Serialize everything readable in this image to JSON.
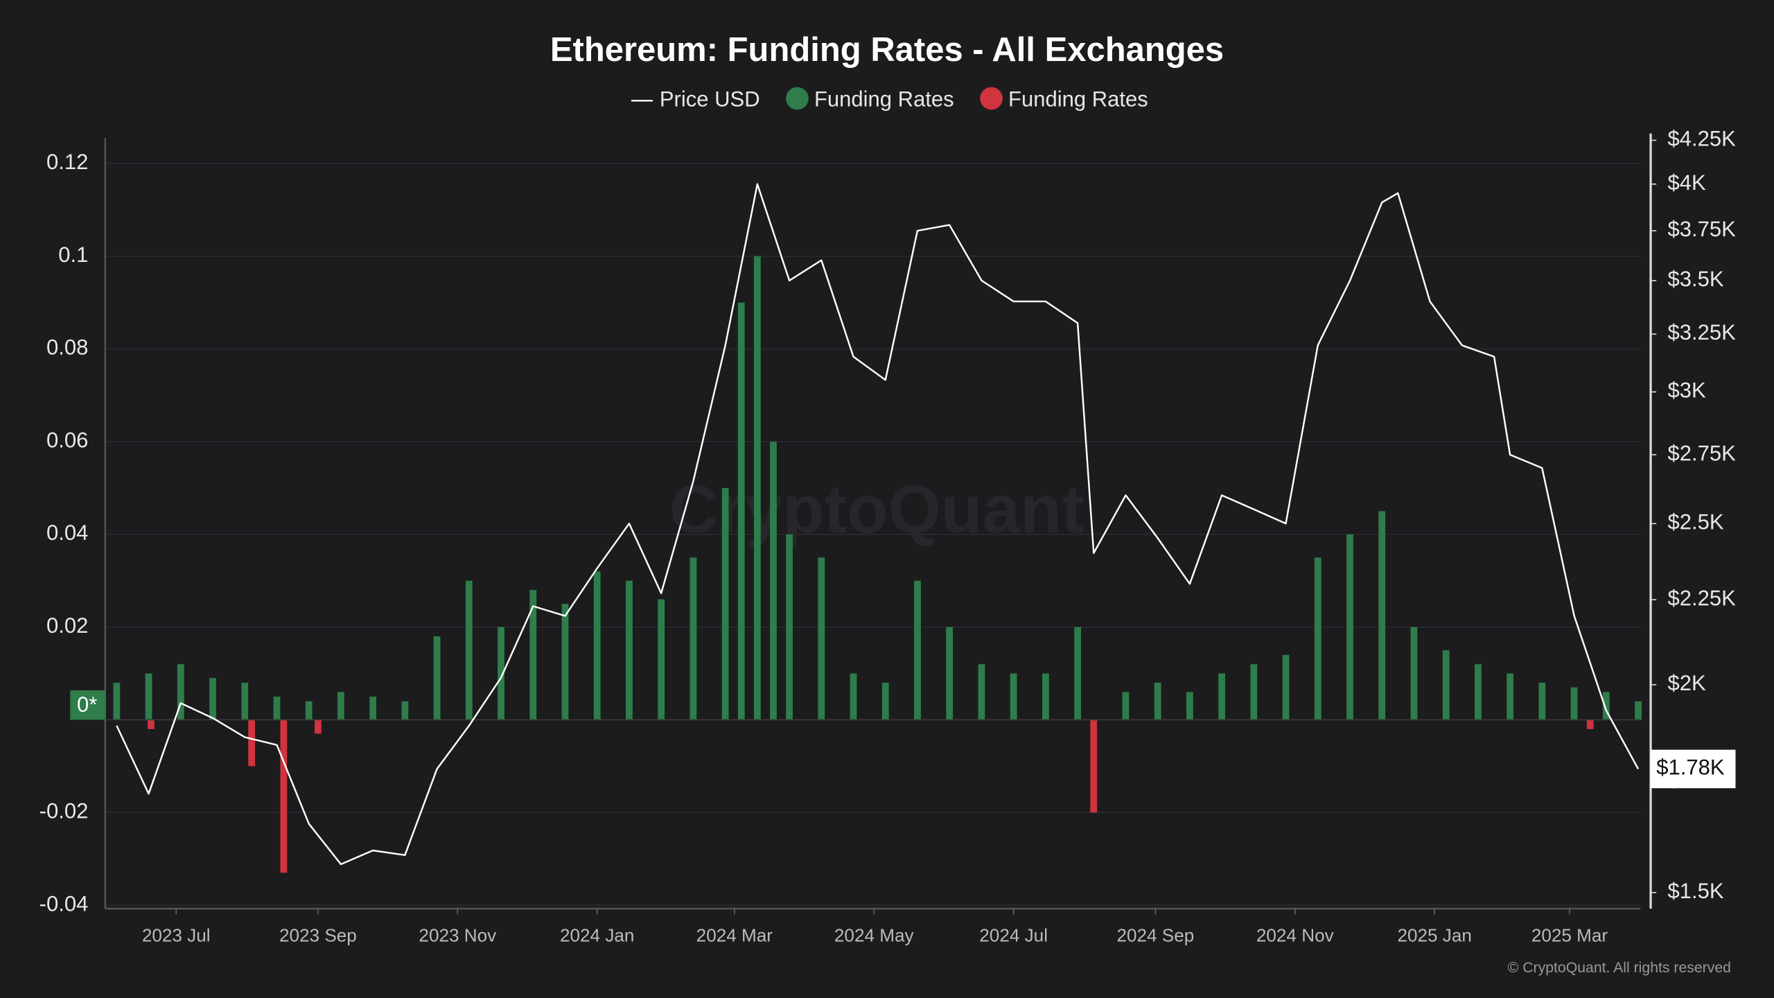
{
  "chart_data": {
    "type": "line-bar",
    "title": "Ethereum: Funding Rates - All Exchanges",
    "watermark": "CryptoQuant",
    "credit": "© CryptoQuant. All rights reserved",
    "zero_tag": "0*",
    "current_price": {
      "value": 1780,
      "label": "$1.78K"
    },
    "xlim": [
      "2023-05-31",
      "2025-04-01"
    ],
    "xticks": [
      {
        "value": "2023-07-01",
        "label": "2023 Jul"
      },
      {
        "value": "2023-09-01",
        "label": "2023 Sep"
      },
      {
        "value": "2023-11-01",
        "label": "2023 Nov"
      },
      {
        "value": "2024-01-01",
        "label": "2024 Jan"
      },
      {
        "value": "2024-03-01",
        "label": "2024 Mar"
      },
      {
        "value": "2024-05-01",
        "label": "2024 May"
      },
      {
        "value": "2024-07-01",
        "label": "2024 Jul"
      },
      {
        "value": "2024-09-01",
        "label": "2024 Sep"
      },
      {
        "value": "2024-11-01",
        "label": "2024 Nov"
      },
      {
        "value": "2025-01-01",
        "label": "2025 Jan"
      },
      {
        "value": "2025-03-01",
        "label": "2025 Mar"
      }
    ],
    "ylim": [
      -0.04,
      0.125
    ],
    "yticks": [
      -0.04,
      -0.02,
      0.02,
      0.04,
      0.06,
      0.08,
      0.1,
      0.12
    ],
    "y2lim": [
      1474,
      4250
    ],
    "y2scale": "log",
    "y2ticks": [
      {
        "value": 1500,
        "label": "$1.5K"
      },
      {
        "value": 1750,
        "label": "$1.75K"
      },
      {
        "value": 2000,
        "label": "$2K"
      },
      {
        "value": 2250,
        "label": "$2.25K"
      },
      {
        "value": 2500,
        "label": "$2.5K"
      },
      {
        "value": 2750,
        "label": "$2.75K"
      },
      {
        "value": 3000,
        "label": "$3K"
      },
      {
        "value": 3250,
        "label": "$3.25K"
      },
      {
        "value": 3500,
        "label": "$3.5K"
      },
      {
        "value": 3750,
        "label": "$3.75K"
      },
      {
        "value": 4000,
        "label": "$4K"
      },
      {
        "value": 4250,
        "label": "$4.25K"
      }
    ],
    "grid": true,
    "series": [
      {
        "name": "Price USD",
        "type": "line",
        "axis": "y2",
        "color": "#ffffff",
        "x": [
          "2023-06-05",
          "2023-06-19",
          "2023-07-03",
          "2023-07-17",
          "2023-07-31",
          "2023-08-14",
          "2023-08-28",
          "2023-09-11",
          "2023-09-25",
          "2023-10-09",
          "2023-10-23",
          "2023-11-06",
          "2023-11-20",
          "2023-12-04",
          "2023-12-18",
          "2024-01-01",
          "2024-01-15",
          "2024-01-29",
          "2024-02-12",
          "2024-02-26",
          "2024-03-11",
          "2024-03-25",
          "2024-04-08",
          "2024-04-22",
          "2024-05-06",
          "2024-05-20",
          "2024-06-03",
          "2024-06-17",
          "2024-07-01",
          "2024-07-15",
          "2024-07-29",
          "2024-08-05",
          "2024-08-19",
          "2024-09-02",
          "2024-09-16",
          "2024-09-30",
          "2024-10-14",
          "2024-10-28",
          "2024-11-11",
          "2024-11-25",
          "2024-12-09",
          "2024-12-16",
          "2024-12-30",
          "2025-01-13",
          "2025-01-27",
          "2025-02-03",
          "2025-02-17",
          "2025-03-03",
          "2025-03-17",
          "2025-03-31"
        ],
        "values": [
          1890,
          1720,
          1950,
          1910,
          1860,
          1840,
          1650,
          1560,
          1590,
          1580,
          1780,
          1890,
          2020,
          2230,
          2200,
          2350,
          2500,
          2270,
          2650,
          3200,
          4000,
          3500,
          3600,
          3150,
          3050,
          3750,
          3780,
          3500,
          3400,
          3400,
          3300,
          2400,
          2600,
          2450,
          2300,
          2600,
          2550,
          2500,
          3200,
          3500,
          3900,
          3950,
          3400,
          3200,
          3150,
          2750,
          2700,
          2200,
          1930,
          1780
        ]
      },
      {
        "name": "Funding Rates",
        "type": "bar",
        "color": "#2e7d4a",
        "x": [
          "2023-06-05",
          "2023-06-19",
          "2023-07-03",
          "2023-07-17",
          "2023-07-31",
          "2023-08-14",
          "2023-08-28",
          "2023-09-11",
          "2023-09-25",
          "2023-10-09",
          "2023-10-23",
          "2023-11-06",
          "2023-11-20",
          "2023-12-04",
          "2023-12-18",
          "2024-01-01",
          "2024-01-15",
          "2024-01-29",
          "2024-02-12",
          "2024-02-26",
          "2024-03-04",
          "2024-03-11",
          "2024-03-18",
          "2024-03-25",
          "2024-04-08",
          "2024-04-22",
          "2024-05-06",
          "2024-05-20",
          "2024-06-03",
          "2024-06-17",
          "2024-07-01",
          "2024-07-15",
          "2024-07-29",
          "2024-08-19",
          "2024-09-02",
          "2024-09-16",
          "2024-09-30",
          "2024-10-14",
          "2024-10-28",
          "2024-11-11",
          "2024-11-25",
          "2024-12-09",
          "2024-12-23",
          "2025-01-06",
          "2025-01-20",
          "2025-02-03",
          "2025-02-17",
          "2025-03-03",
          "2025-03-17",
          "2025-03-31"
        ],
        "values": [
          0.008,
          0.01,
          0.012,
          0.009,
          0.008,
          0.005,
          0.004,
          0.006,
          0.005,
          0.004,
          0.018,
          0.03,
          0.02,
          0.028,
          0.025,
          0.032,
          0.03,
          0.026,
          0.035,
          0.05,
          0.09,
          0.1,
          0.06,
          0.04,
          0.035,
          0.01,
          0.008,
          0.03,
          0.02,
          0.012,
          0.01,
          0.01,
          0.02,
          0.006,
          0.008,
          0.006,
          0.01,
          0.012,
          0.014,
          0.035,
          0.04,
          0.045,
          0.02,
          0.015,
          0.012,
          0.01,
          0.008,
          0.007,
          0.006,
          0.004
        ]
      },
      {
        "name": "Funding Rates",
        "type": "bar",
        "color": "#d0343f",
        "x": [
          "2023-06-20",
          "2023-08-03",
          "2023-08-17",
          "2023-09-01",
          "2024-08-05",
          "2025-03-10"
        ],
        "values": [
          -0.002,
          -0.01,
          -0.033,
          -0.003,
          -0.02,
          -0.002
        ]
      }
    ]
  }
}
